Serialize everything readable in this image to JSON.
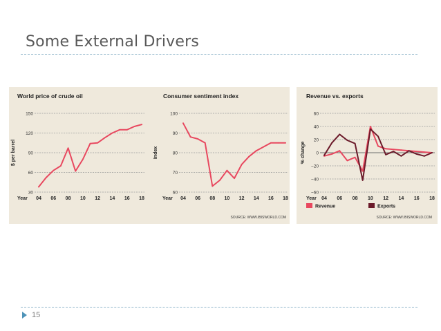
{
  "slide": {
    "title": "Some External Drivers",
    "page_number": "15",
    "accent_color": "#4f93b8"
  },
  "chart_data": [
    {
      "type": "line",
      "title": "World price of crude oil",
      "ylabel": "$ per barrel",
      "xlabel": "",
      "x_prefix": "Year",
      "x": [
        2004,
        2005,
        2006,
        2007,
        2008,
        2009,
        2010,
        2011,
        2012,
        2013,
        2014,
        2015,
        2016,
        2017,
        2018
      ],
      "x_ticks": [
        "04",
        "06",
        "08",
        "10",
        "12",
        "14",
        "16",
        "18"
      ],
      "y_ticks": [
        30,
        60,
        90,
        120,
        150
      ],
      "ylim": [
        30,
        150
      ],
      "series": [
        {
          "values": [
            38,
            52,
            63,
            70,
            97,
            62,
            80,
            104,
            105,
            113,
            120,
            125,
            125,
            130,
            133
          ],
          "color": "#e8485f"
        }
      ],
      "grid": "horizontal"
    },
    {
      "type": "line",
      "title": "Consumer sentiment index",
      "ylabel": "Index",
      "xlabel": "",
      "x_prefix": "Year",
      "x": [
        2004,
        2005,
        2006,
        2007,
        2008,
        2009,
        2010,
        2011,
        2012,
        2013,
        2014,
        2015,
        2016,
        2017,
        2018
      ],
      "x_ticks": [
        "04",
        "06",
        "08",
        "10",
        "12",
        "14",
        "16",
        "18"
      ],
      "y_ticks": [
        60,
        70,
        80,
        90,
        100
      ],
      "ylim": [
        60,
        100
      ],
      "series": [
        {
          "values": [
            95,
            88,
            87,
            85,
            63,
            66,
            71,
            67,
            74,
            78,
            81,
            83,
            85,
            85,
            85
          ],
          "color": "#e8485f"
        }
      ],
      "grid": "horizontal",
      "source": "SOURCE: WWW.IBISWORLD.COM"
    },
    {
      "type": "line",
      "title": "Revenue vs. exports",
      "ylabel": "% change",
      "xlabel": "",
      "x_prefix": "Year",
      "x": [
        2004,
        2005,
        2006,
        2007,
        2008,
        2009,
        2010,
        2011,
        2012,
        2013,
        2014,
        2015,
        2016,
        2017,
        2018
      ],
      "x_ticks": [
        "04",
        "06",
        "08",
        "10",
        "12",
        "14",
        "16",
        "18"
      ],
      "y_ticks": [
        -60,
        -40,
        -20,
        0,
        20,
        40,
        60
      ],
      "ylim": [
        -60,
        60
      ],
      "series": [
        {
          "name": "Revenue",
          "values": [
            -5,
            -2,
            3,
            -12,
            -7,
            -28,
            40,
            10,
            6,
            5,
            4,
            3,
            2,
            1,
            0
          ],
          "color": "#e8485f"
        },
        {
          "name": "Exports",
          "values": [
            -4,
            15,
            28,
            19,
            14,
            -42,
            36,
            25,
            -3,
            2,
            -5,
            3,
            -2,
            -5,
            0
          ],
          "color": "#6b1a2a"
        }
      ],
      "legend": "bottom",
      "grid": "horizontal",
      "source": "SOURCE: WWW.IBISWORLD.COM"
    }
  ]
}
